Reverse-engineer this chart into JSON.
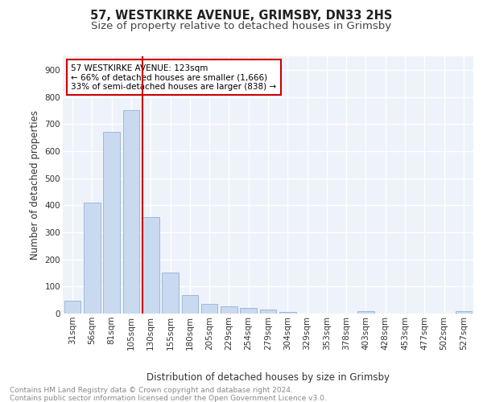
{
  "title": "57, WESTKIRKE AVENUE, GRIMSBY, DN33 2HS",
  "subtitle": "Size of property relative to detached houses in Grimsby",
  "xlabel": "Distribution of detached houses by size in Grimsby",
  "ylabel": "Number of detached properties",
  "categories": [
    "31sqm",
    "56sqm",
    "81sqm",
    "105sqm",
    "130sqm",
    "155sqm",
    "180sqm",
    "205sqm",
    "229sqm",
    "254sqm",
    "279sqm",
    "304sqm",
    "329sqm",
    "353sqm",
    "378sqm",
    "403sqm",
    "428sqm",
    "453sqm",
    "477sqm",
    "502sqm",
    "527sqm"
  ],
  "values": [
    47,
    410,
    670,
    750,
    355,
    150,
    68,
    35,
    27,
    20,
    15,
    6,
    0,
    0,
    0,
    9,
    0,
    0,
    0,
    0,
    9
  ],
  "bar_color": "#c9d9f0",
  "bar_edge_color": "#a0b8d8",
  "vline_color": "#cc0000",
  "annotation_text": "57 WESTKIRKE AVENUE: 123sqm\n← 66% of detached houses are smaller (1,666)\n33% of semi-detached houses are larger (838) →",
  "box_edge_color": "#cc0000",
  "ylim": [
    0,
    950
  ],
  "yticks": [
    0,
    100,
    200,
    300,
    400,
    500,
    600,
    700,
    800,
    900
  ],
  "footer_text": "Contains HM Land Registry data © Crown copyright and database right 2024.\nContains public sector information licensed under the Open Government Licence v3.0.",
  "background_color": "#eef2fa",
  "grid_color": "#ffffff",
  "title_fontsize": 10.5,
  "subtitle_fontsize": 9.5,
  "label_fontsize": 8.5,
  "tick_fontsize": 7.5,
  "annot_fontsize": 7.5,
  "footer_fontsize": 6.5
}
